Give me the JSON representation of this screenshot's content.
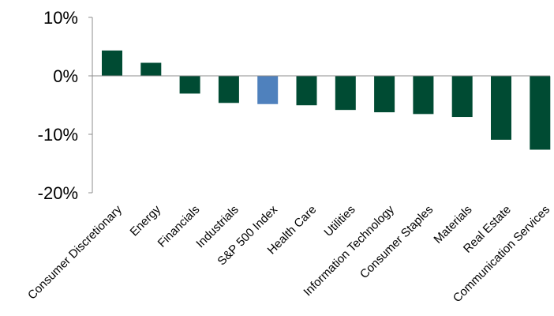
{
  "chart_data": {
    "type": "bar",
    "categories": [
      "Consumer Discretionary",
      "Energy",
      "Financials",
      "Industrials",
      "S&P 500 Index",
      "Health Care",
      "Utilities",
      "Information Technology",
      "Consumer Staples",
      "Materials",
      "Real Estate",
      "Communication Services"
    ],
    "values": [
      4.4,
      2.3,
      -3.1,
      -4.7,
      -4.9,
      -5.1,
      -5.9,
      -6.3,
      -6.6,
      -7.1,
      -11.0,
      -12.7
    ],
    "highlight_category": "S&P 500 Index",
    "ylim": [
      -20,
      10
    ],
    "y_ticks": [
      10,
      0,
      -10,
      -20
    ],
    "y_tick_labels": [
      "10%",
      "0%",
      "-10%",
      "-20%"
    ],
    "title": "",
    "xlabel": "",
    "ylabel": "",
    "grid": false,
    "colors": {
      "bar": "#004B33",
      "highlight": "#4F81BD",
      "bar_stroke": "#ffffff",
      "axis": "#8c8c8c"
    }
  }
}
